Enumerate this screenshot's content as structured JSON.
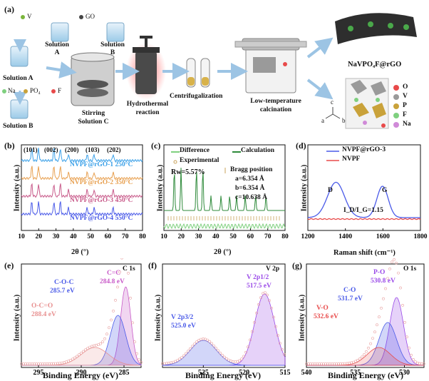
{
  "panel_a": {
    "letter": "(a)",
    "legend_v": "V",
    "legend_go": "GO",
    "legend_na_po4_f": [
      "Na",
      "PO₄",
      "F"
    ],
    "solution_a": "Solution A",
    "solution_a_top": "Solution A",
    "solution_b": "Solution B",
    "solution_b_top": "Solution B",
    "stirring": "Stirring Solution C",
    "hydrothermal": "Hydrothermal reaction",
    "centrifuge": "Centrifugalization",
    "calcination": "Low-temperature calcination",
    "product": "NaVPO₄F@rGO",
    "axes_c": "c",
    "axes_a": "a",
    "axes_b": "b",
    "atom_legend": [
      "O",
      "V",
      "P",
      "F",
      "Na"
    ],
    "atom_colors": [
      "#e84a4a",
      "#9a9a9a",
      "#c9a23a",
      "#7fd07f",
      "#d08ad8"
    ]
  },
  "chart_data": [
    {
      "panel": "(b)",
      "type": "line",
      "xlabel": "2θ (°)",
      "ylabel": "Intensity (a.u.)",
      "xlim": [
        10,
        80
      ],
      "xticks": [
        "10",
        "20",
        "30",
        "40",
        "50",
        "60",
        "70",
        "80"
      ],
      "peak_labels": [
        "(101)",
        "(002)",
        "(200)",
        "(103)",
        "(202)"
      ],
      "series": [
        {
          "name": "NVPF@rGO-1 250°C",
          "color": "#3aa0e8"
        },
        {
          "name": "NVPF@rGO-2 350°C",
          "color": "#e8a050"
        },
        {
          "name": "NVPF@rGO-3 450°C",
          "color": "#c85a8a"
        },
        {
          "name": "NVPF@rGO-4 550°C",
          "color": "#4a5ae8"
        }
      ]
    },
    {
      "panel": "(c)",
      "type": "line",
      "xlabel": "2θ (°)",
      "ylabel": "Intensity (a.u.)",
      "xlim": [
        10,
        80
      ],
      "xticks": [
        "10",
        "20",
        "30",
        "40",
        "50",
        "60",
        "70",
        "80"
      ],
      "legend": [
        "Difference",
        "Calculation",
        "Experimental",
        "Bragg position"
      ],
      "annotations": [
        "Rw=5.57%",
        "a=6.354 Å",
        "b=6.354 Å",
        "c=10.638 Å"
      ]
    },
    {
      "panel": "(d)",
      "type": "line",
      "xlabel": "Raman shift (cm⁻¹)",
      "ylabel": "Intensity (a.u.)",
      "xlim": [
        1200,
        1800
      ],
      "xticks": [
        "1200",
        "1400",
        "1600",
        "1800"
      ],
      "series": [
        {
          "name": "NVPF@rGO-3",
          "color": "#4a5ae8"
        },
        {
          "name": "NVPF",
          "color": "#e84a4a"
        }
      ],
      "peaks": [
        {
          "label": "D",
          "x": 1350
        },
        {
          "label": "G",
          "x": 1598
        }
      ],
      "ratio_label": "I_D/I_G=1.15"
    },
    {
      "panel": "(e)",
      "type": "line",
      "title": "C 1s",
      "xlabel": "Binding Energy (eV)",
      "ylabel": "Intensity (a.u.)",
      "xlim": [
        297,
        283
      ],
      "xticks": [
        "295",
        "290",
        "285"
      ],
      "peaks": [
        {
          "label": "C=C",
          "value": "284.8 eV",
          "x": 284.8
        },
        {
          "label": "C-O-C",
          "value": "285.7 eV",
          "x": 285.7
        },
        {
          "label": "O-C=O",
          "value": "288.4 eV",
          "x": 288.4
        }
      ]
    },
    {
      "panel": "(f)",
      "type": "line",
      "title": "V 2p",
      "xlabel": "Binding Energy (eV)",
      "ylabel": "Intensity (a.u.)",
      "xlim": [
        530,
        515
      ],
      "xticks": [
        "525",
        "520",
        "515"
      ],
      "peaks": [
        {
          "label": "V 2p1/2",
          "value": "517.5 eV",
          "x": 517.5
        },
        {
          "label": "V 2p3/2",
          "value": "525.0 eV",
          "x": 525.0
        }
      ]
    },
    {
      "panel": "(g)",
      "type": "line",
      "title": "O 1s",
      "xlabel": "Binding Energy (eV)",
      "ylabel": "Intensity (a.u.)",
      "xlim": [
        540,
        528
      ],
      "xticks": [
        "540",
        "535",
        "530"
      ],
      "peaks": [
        {
          "label": "P-O",
          "value": "530.8 eV",
          "x": 530.8
        },
        {
          "label": "C-O",
          "value": "531.7 eV",
          "x": 531.7
        },
        {
          "label": "V-O",
          "value": "532.6 eV",
          "x": 532.6
        }
      ]
    }
  ]
}
